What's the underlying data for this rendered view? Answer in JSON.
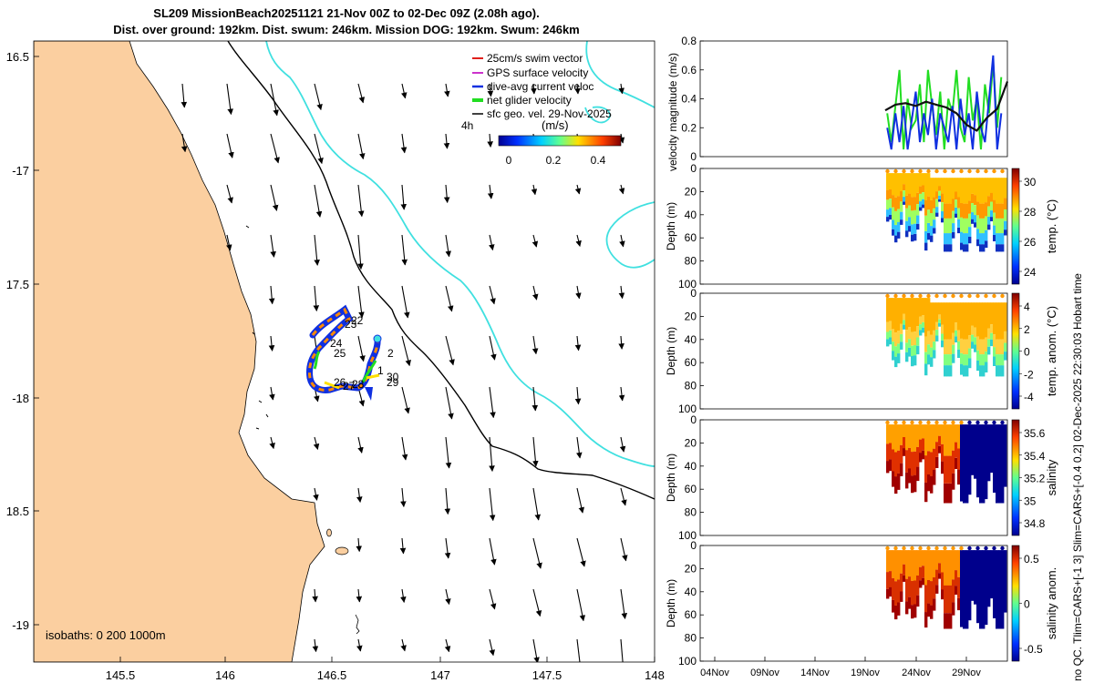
{
  "title_line1": "SL209 MissionBeach20251121 21-Nov 00Z to 02-Dec 09Z (2.08h ago).",
  "title_line2": "Dist. over ground: 192km. Dist. swum: 246km. Mission DOG: 192km. Swum: 246km",
  "side_text_right": "no QC. Tlim=CARS+[-1 3] Slim=CARS+[-0.4 0.2] 02-Dec-2025 22:30:03 Hobart time",
  "map": {
    "lon_ticks": [
      "145.5",
      "146",
      "146.5",
      "147",
      "147.5",
      "148"
    ],
    "lat_ticks": [
      "16.5",
      "-17",
      "17.5",
      "-18",
      "18.5",
      "-19"
    ],
    "isobath_label": "isobaths: 0   200  1000m",
    "legend": [
      {
        "label": "25cm/s swim vector",
        "color": "#e0201c"
      },
      {
        "label": "GPS surface velocity",
        "color": "#cc33cc"
      },
      {
        "label": "dive-avg current veloc",
        "color": "#1030e0"
      },
      {
        "label": "net glider velocity",
        "color": "#22dd22"
      },
      {
        "label": "sfc geo. vel. 29-Nov-2025",
        "color": "#000000"
      }
    ],
    "colorbar": {
      "label": "(m/s)",
      "side_label": "4h",
      "ticks": [
        "0",
        "0.2",
        "0.4"
      ]
    },
    "day_labels": [
      "22",
      "23",
      "24",
      "25",
      "2",
      "1",
      "30",
      "29",
      "26",
      "27",
      "28"
    ],
    "land_color": "#fbcfa0",
    "contour_color": "#40e0e0"
  },
  "chart_data": [
    {
      "type": "line",
      "ylabel": "velocity magnitude (m/s)",
      "ylim": [
        0,
        0.8
      ],
      "yticks": [
        "0",
        "0.2",
        "0.4",
        "0.6",
        "0.8"
      ],
      "x_day_range": [
        0,
        12
      ],
      "series": [
        {
          "name": "net glider velocity",
          "color": "#22dd22",
          "x": [
            0.2,
            0.6,
            1.0,
            1.4,
            1.8,
            2.2,
            2.6,
            3.0,
            3.4,
            3.8,
            4.2,
            4.6,
            5.0,
            5.4,
            5.8,
            6.2,
            6.6,
            7.0,
            7.4,
            7.8,
            8.2,
            8.6,
            9.0,
            9.4,
            9.8,
            10.2,
            10.6,
            11.0,
            11.4
          ],
          "y": [
            0.3,
            0.1,
            0.35,
            0.6,
            0.05,
            0.4,
            0.2,
            0.25,
            0.5,
            0.1,
            0.6,
            0.35,
            0.15,
            0.45,
            0.05,
            0.4,
            0.3,
            0.6,
            0.2,
            0.1,
            0.55,
            0.25,
            0.4,
            0.05,
            0.5,
            0.3,
            0.65,
            0.2,
            0.55
          ]
        },
        {
          "name": "dive-avg current velocity",
          "color": "#1030e0",
          "x": [
            0.2,
            0.6,
            1.0,
            1.4,
            1.8,
            2.2,
            2.6,
            3.0,
            3.4,
            3.8,
            4.2,
            4.6,
            5.0,
            5.4,
            5.8,
            6.2,
            6.6,
            7.0,
            7.4,
            7.8,
            8.2,
            8.6,
            9.0,
            9.4,
            9.8,
            10.2,
            10.6,
            11.0,
            11.4
          ],
          "y": [
            0.2,
            0.05,
            0.3,
            0.1,
            0.35,
            0.05,
            0.25,
            0.45,
            0.1,
            0.3,
            0.15,
            0.4,
            0.05,
            0.3,
            0.2,
            0.1,
            0.35,
            0.05,
            0.4,
            0.15,
            0.3,
            0.05,
            0.45,
            0.2,
            0.1,
            0.4,
            0.7,
            0.05,
            0.3
          ]
        },
        {
          "name": "sfc geo. vel.",
          "color": "#111111",
          "x": [
            0.0,
            1.0,
            2.0,
            3.0,
            4.0,
            5.0,
            6.0,
            7.0,
            8.0,
            9.0,
            10.0,
            11.0,
            12.0
          ],
          "y": [
            0.32,
            0.36,
            0.37,
            0.35,
            0.38,
            0.36,
            0.34,
            0.3,
            0.22,
            0.18,
            0.27,
            0.33,
            0.52
          ]
        }
      ]
    },
    {
      "type": "heatmap",
      "ylabel": "Depth (m)",
      "yticks": [
        "0",
        "20",
        "40",
        "60",
        "80",
        "100"
      ],
      "colorbar_label": "temp. (°C)",
      "colorbar_ticks": [
        "30",
        "28",
        "26",
        "24"
      ]
    },
    {
      "type": "heatmap",
      "ylabel": "Depth (m)",
      "yticks": [
        "0",
        "20",
        "40",
        "60",
        "80",
        "100"
      ],
      "colorbar_label": "temp. anom. (°C)",
      "colorbar_ticks": [
        "4",
        "2",
        "0",
        "-2",
        "-4"
      ]
    },
    {
      "type": "heatmap",
      "ylabel": "Depth (m)",
      "yticks": [
        "0",
        "20",
        "40",
        "60",
        "80",
        "100"
      ],
      "colorbar_label": "salinity",
      "colorbar_ticks": [
        "35.6",
        "35.4",
        "35.2",
        "35",
        "34.8"
      ]
    },
    {
      "type": "heatmap",
      "ylabel": "Depth (m)",
      "yticks": [
        "0",
        "20",
        "40",
        "60",
        "80",
        "100"
      ],
      "colorbar_label": "salinity anom.",
      "colorbar_ticks": [
        "0.5",
        "0",
        "-0.5"
      ]
    }
  ],
  "time_axis": {
    "ticks": [
      "04Nov",
      "09Nov",
      "14Nov",
      "19Nov",
      "24Nov",
      "29Nov"
    ]
  }
}
